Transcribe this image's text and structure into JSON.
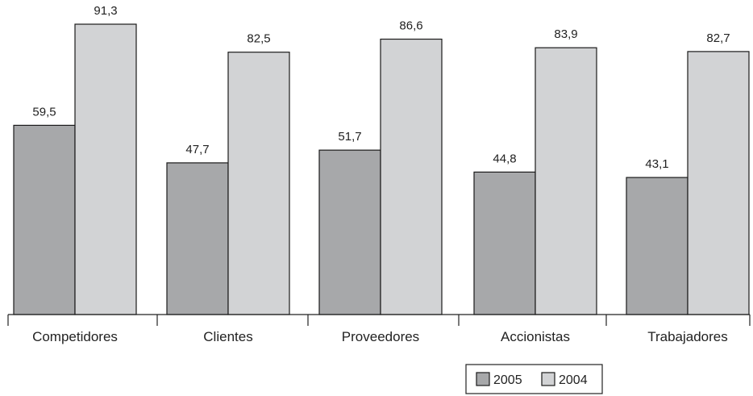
{
  "chart_data": {
    "type": "bar",
    "categories": [
      "Competidores",
      "Clientes",
      "Proveedores",
      "Accionistas",
      "Trabajadores"
    ],
    "series": [
      {
        "name": "2005",
        "values": [
          59.5,
          47.7,
          51.7,
          44.8,
          43.1
        ],
        "labels": [
          "59,5",
          "47,7",
          "51,7",
          "44,8",
          "43,1"
        ],
        "color": "#a7a8aa"
      },
      {
        "name": "2004",
        "values": [
          91.3,
          82.5,
          86.6,
          83.9,
          82.7
        ],
        "labels": [
          "91,3",
          "82,5",
          "86,6",
          "83,9",
          "82,7"
        ],
        "color": "#d2d3d5"
      }
    ],
    "ylim": [
      0,
      100
    ],
    "grid": false,
    "legend_position": "bottom-right"
  }
}
